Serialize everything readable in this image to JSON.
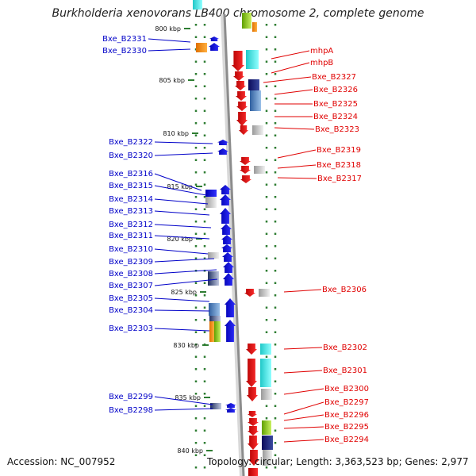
{
  "title": "Burkholderia xenovorans LB400 chromosome 2, complete genome",
  "accession": "Accession: NC_007952",
  "topology": "Topology: circular; Length: 3,363,523 bp; Genes: 2,977",
  "colors": {
    "forward_label": "#0000c8",
    "reverse_label": "#e00000",
    "ruler": "#2e7d32",
    "backbone": "#8c8c8c"
  },
  "kbp_ticks": [
    "800 kbp",
    "805 kbp",
    "810 kbp",
    "815 kbp",
    "820 kbp",
    "825 kbp",
    "830 kbp",
    "835 kbp",
    "840 kbp"
  ],
  "left_labels": [
    "Bxe_B2331",
    "Bxe_B2330",
    "Bxe_B2322",
    "Bxe_B2320",
    "Bxe_B2316",
    "Bxe_B2315",
    "Bxe_B2314",
    "Bxe_B2313",
    "Bxe_B2312",
    "Bxe_B2311",
    "Bxe_B2310",
    "Bxe_B2309",
    "Bxe_B2308",
    "Bxe_B2307",
    "Bxe_B2305",
    "Bxe_B2304",
    "Bxe_B2303",
    "Bxe_B2299",
    "Bxe_B2298"
  ],
  "right_labels": [
    "mhpA",
    "mhpB",
    "Bxe_B2327",
    "Bxe_B2326",
    "Bxe_B2325",
    "Bxe_B2324",
    "Bxe_B2323",
    "Bxe_B2319",
    "Bxe_B2318",
    "Bxe_B2317",
    "Bxe_B2306",
    "Bxe_B2302",
    "Bxe_B2301",
    "Bxe_B2300",
    "Bxe_B2297",
    "Bxe_B2296",
    "Bxe_B2295",
    "Bxe_B2294"
  ]
}
